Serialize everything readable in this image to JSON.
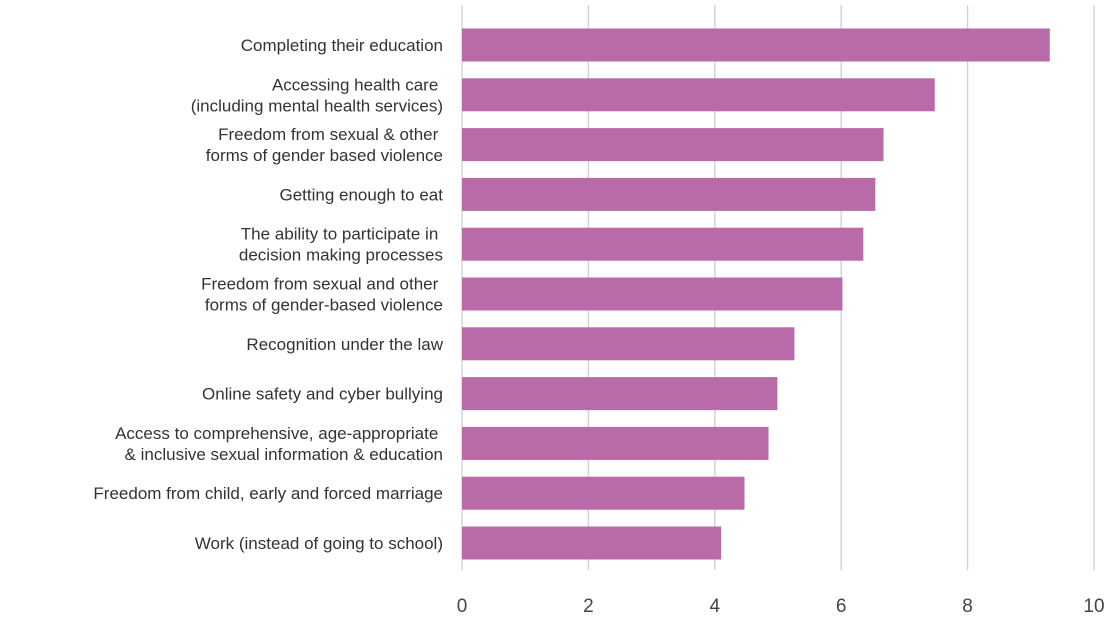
{
  "chart_data": {
    "type": "bar",
    "orientation": "horizontal",
    "title": "",
    "xlabel": "",
    "ylabel": "",
    "xlim": [
      0,
      10
    ],
    "x_ticks": [
      "0",
      "2",
      "4",
      "6",
      "8",
      "10"
    ],
    "grid": true,
    "bar_color": "#b96aa8",
    "categories": [
      [
        "Completing their education"
      ],
      [
        "Accessing health care ",
        "(including mental health services)"
      ],
      [
        "Freedom from sexual & other ",
        "forms of gender based violence"
      ],
      [
        "Getting enough to eat"
      ],
      [
        "The ability to participate in ",
        "decision making processes"
      ],
      [
        "Freedom from sexual and other ",
        "forms of gender-based violence"
      ],
      [
        "Recognition under the law"
      ],
      [
        "Online safety and cyber bullying"
      ],
      [
        "Access to comprehensive, age-appropriate ",
        "& inclusive sexual information & education"
      ],
      [
        "Freedom from child, early and forced marriage"
      ],
      [
        "Work (instead of going to school)"
      ]
    ],
    "values": [
      9.3,
      7.48,
      6.67,
      6.54,
      6.35,
      6.02,
      5.26,
      4.99,
      4.85,
      4.47,
      4.1
    ]
  }
}
